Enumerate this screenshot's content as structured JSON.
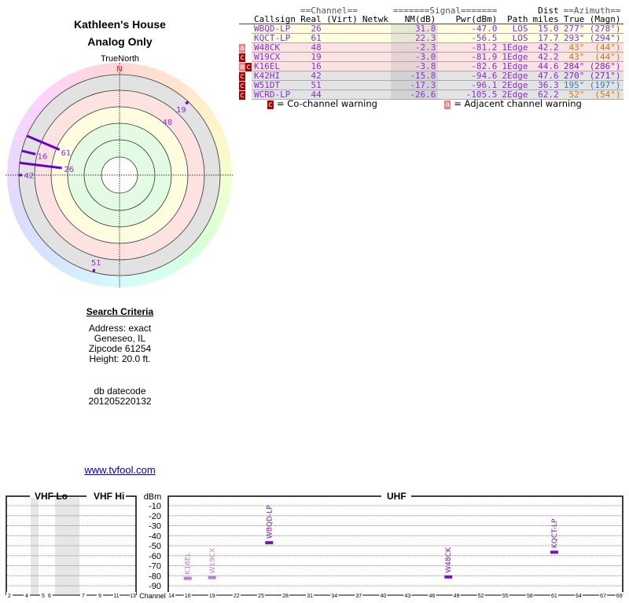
{
  "header": {
    "title": "Kathleen's House",
    "subtitle": "Analog Only"
  },
  "radar": {
    "true_north_label": "TrueNorth",
    "north_label": "N"
  },
  "table": {
    "group_headers": {
      "channel": "==Channel==",
      "signal": "=======Signal=======",
      "dist": "Dist",
      "azimuth": "==Azimuth=="
    },
    "columns": [
      "Callsign",
      "Real",
      "(Virt)",
      "Netwk",
      "NM(dB)",
      "Pwr(dBm)",
      "Path",
      "miles",
      "True",
      "(Magn)"
    ],
    "rows": [
      {
        "flags": "",
        "callsign": "WBQD-LP",
        "real": "26",
        "virt": "",
        "netwk": "",
        "nm": "31.8",
        "pwr": "-47.0",
        "path": "LOS",
        "dist": "15.0",
        "true": "277°",
        "magn": "(278°)",
        "bg": "#ffffe0",
        "az_color": "#8a2be2"
      },
      {
        "flags": "",
        "callsign": "KQCT-LP",
        "real": "61",
        "virt": "",
        "netwk": "",
        "nm": "22.3",
        "pwr": "-56.5",
        "path": "LOS",
        "dist": "17.7",
        "true": "293°",
        "magn": "(294°)",
        "bg": "#ffffe0",
        "az_color": "#8a2be2"
      },
      {
        "flags": "a",
        "callsign": "W48CK",
        "real": "48",
        "virt": "",
        "netwk": "",
        "nm": "-2.3",
        "pwr": "-81.2",
        "path": "1Edge",
        "dist": "42.2",
        "true": "43°",
        "magn": "(44°)",
        "bg": "#fbe3e3",
        "az_color": "#d07a10"
      },
      {
        "flags": "c",
        "callsign": "W19CX",
        "real": "19",
        "virt": "",
        "netwk": "",
        "nm": "-3.0",
        "pwr": "-81.9",
        "path": "1Edge",
        "dist": "42.2",
        "true": "43°",
        "magn": "(44°)",
        "bg": "#fbe3e3",
        "az_color": "#d07a10"
      },
      {
        "flags": "ac",
        "callsign": "K16EL",
        "real": "16",
        "virt": "",
        "netwk": "",
        "nm": "-3.8",
        "pwr": "-82.6",
        "path": "1Edge",
        "dist": "44.6",
        "true": "284°",
        "magn": "(286°)",
        "bg": "#fbe3e3",
        "az_color": "#7a1fc8"
      },
      {
        "flags": "c",
        "callsign": "K42HI",
        "real": "42",
        "virt": "",
        "netwk": "",
        "nm": "-15.8",
        "pwr": "-94.6",
        "path": "2Edge",
        "dist": "47.6",
        "true": "270°",
        "magn": "(271°)",
        "bg": "#e3e3e3",
        "az_color": "#7a1fc8"
      },
      {
        "flags": "c",
        "callsign": "W51DT",
        "real": "51",
        "virt": "",
        "netwk": "",
        "nm": "-17.3",
        "pwr": "-96.1",
        "path": "2Edge",
        "dist": "36.3",
        "true": "195°",
        "magn": "(197°)",
        "bg": "#e3e3e3",
        "az_color": "#2a7fc0"
      },
      {
        "flags": "c",
        "callsign": "WCRD-LP",
        "real": "44",
        "virt": "",
        "netwk": "",
        "nm": "-26.6",
        "pwr": "-105.5",
        "path": "2Edge",
        "dist": "62.2",
        "true": "52°",
        "magn": "(54°)",
        "bg": "#e3e3e3",
        "az_color": "#d07a10"
      }
    ],
    "legend": {
      "co_flag": "c",
      "co_label": "= Co-channel warning",
      "adj_flag": "a",
      "adj_label": "= Adjacent channel warning"
    }
  },
  "radar_stations": [
    {
      "ch": "26",
      "az": 277,
      "nm": 31.8
    },
    {
      "ch": "61",
      "az": 293,
      "nm": 22.3
    },
    {
      "ch": "48",
      "az": 43,
      "nm": -2.3
    },
    {
      "ch": "19",
      "az": 43,
      "nm": -3.0
    },
    {
      "ch": "16",
      "az": 284,
      "nm": -3.8
    },
    {
      "ch": "42",
      "az": 270,
      "nm": -15.8
    },
    {
      "ch": "51",
      "az": 195,
      "nm": -17.3
    }
  ],
  "criteria": {
    "heading": "Search Criteria",
    "address": "Address: exact",
    "city": "Geneseo, IL",
    "zip": "Zipcode 61254",
    "height": "Height: 20.0 ft.",
    "db_label": "db datecode",
    "db_value": "201205220132"
  },
  "link": "www.tvfool.com",
  "chart_data": {
    "type": "bar",
    "title_vhf_lo": "VHF Lo",
    "title_vhf_hi": "VHF Hi",
    "title_uhf": "UHF",
    "ylabel": "dBm",
    "xlabel": "Channel",
    "ylim": [
      -95,
      -5
    ],
    "yticks": [
      "-10",
      "-20",
      "-30",
      "-40",
      "-50",
      "-60",
      "-70",
      "-80",
      "-90"
    ],
    "vhf_ticks": [
      "2",
      "4",
      "5",
      "6",
      "7",
      "9",
      "11",
      "13"
    ],
    "uhf_ticks": [
      "14",
      "16",
      "19",
      "22",
      "25",
      "28",
      "31",
      "34",
      "37",
      "40",
      "43",
      "46",
      "49",
      "52",
      "55",
      "58",
      "61",
      "64",
      "67",
      "69"
    ],
    "series": [
      {
        "name": "K16EL",
        "channel": 16,
        "dbm": -82.6,
        "strong": false
      },
      {
        "name": "W19CX",
        "channel": 19,
        "dbm": -81.9,
        "strong": false
      },
      {
        "name": "WBQD-LP",
        "channel": 26,
        "dbm": -47.0,
        "strong": true
      },
      {
        "name": "W48CK",
        "channel": 48,
        "dbm": -81.2,
        "strong": true
      },
      {
        "name": "KQCT-LP",
        "channel": 61,
        "dbm": -56.5,
        "strong": true
      }
    ]
  }
}
